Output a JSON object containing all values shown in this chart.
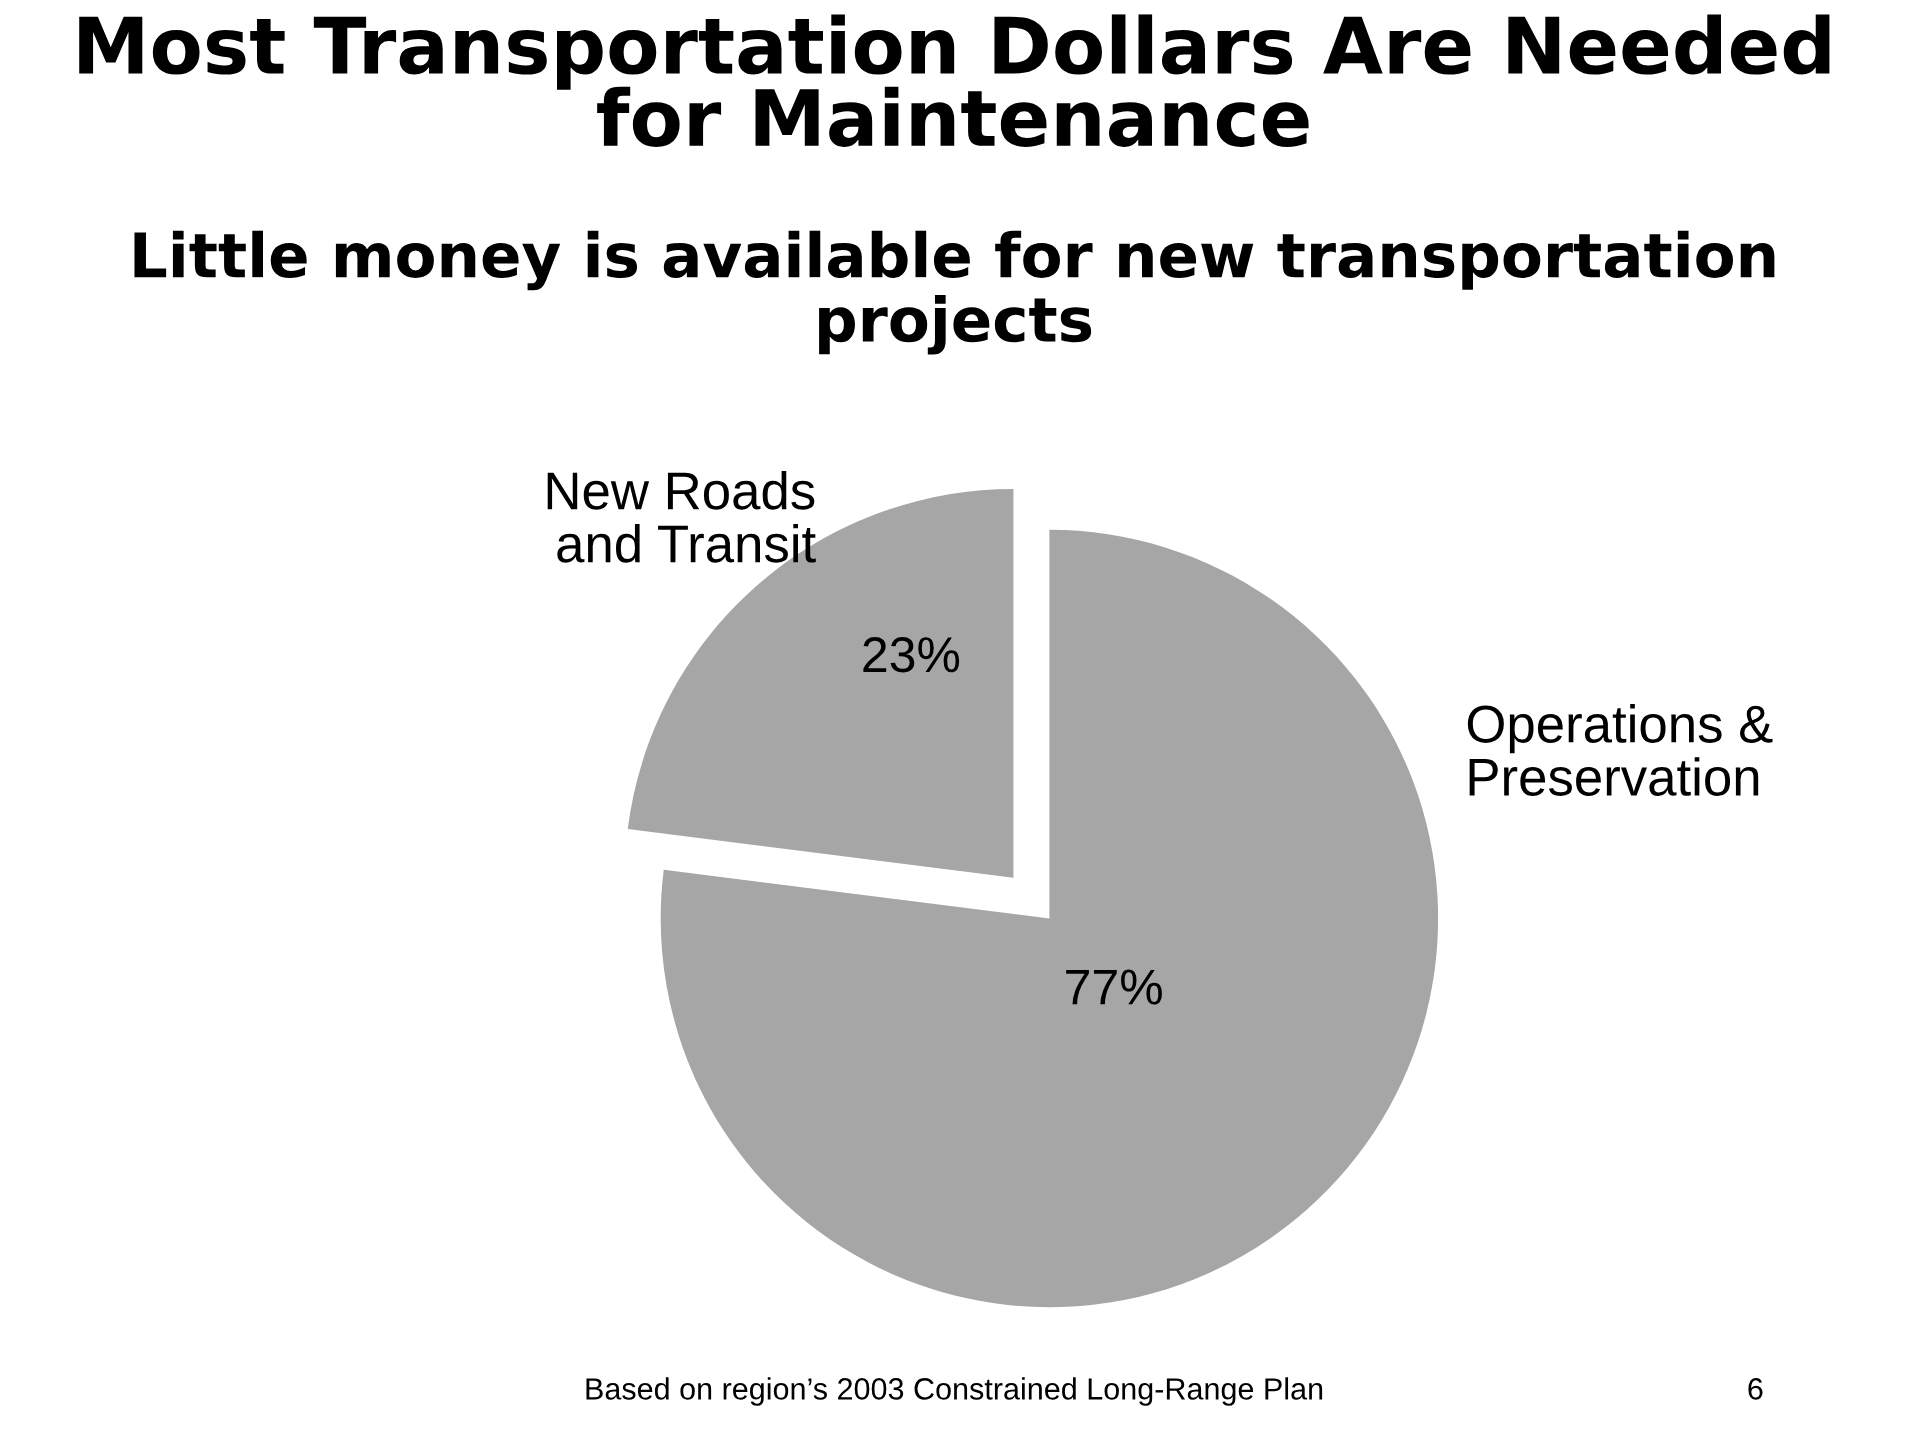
{
  "chart_data": {
    "type": "pie",
    "title": "Most Transportation Dollars Are Needed for Maintenance",
    "subtitle": "Little money is available for new transportation projects",
    "categories": [
      "New Roads\nand Transit",
      "Operations &\nPreservation"
    ],
    "values": [
      23,
      77
    ],
    "colors": [
      "#a6a6a6",
      "#a6a6a6"
    ],
    "value_labels": [
      "23%",
      "77%"
    ],
    "legend": false,
    "annotations": [
      "Based on region’s 2003 Constrained Long-Range Plan",
      "6"
    ]
  }
}
